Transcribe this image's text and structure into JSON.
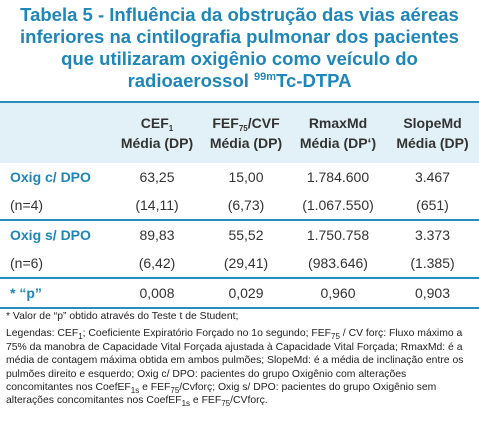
{
  "title": {
    "lines": [
      "Tabela 5 - Influência da obstrução das vias aéreas",
      "inferiores na cintilografia pulmonar dos pacientes",
      "que utilizaram oxigênio como veículo do"
    ],
    "last": [
      "radioaerossol ",
      {
        "sup": "99m"
      },
      "Tc-DTPA"
    ]
  },
  "table": {
    "columns": [
      {
        "name": "CEF",
        "sub": "1",
        "suffix": "",
        "stat": "Média (DP)"
      },
      {
        "name": "FEF",
        "sub": "75",
        "suffix": "/CVF",
        "stat": "Média (DP)"
      },
      {
        "name": "RmaxMd",
        "sub": "",
        "suffix": "",
        "stat": "Média (DP‘)"
      },
      {
        "name": "SlopeMd",
        "sub": "",
        "suffix": "",
        "stat": "Média (DP)"
      }
    ],
    "rows": [
      {
        "label": "Oxig c/ DPO",
        "values": [
          "63,25",
          "15,00",
          "1.784.600",
          "3.467"
        ]
      },
      {
        "label": "(n=4)",
        "values": [
          "(14,11)",
          "(6,73)",
          "(1.067.550)",
          "(651)"
        ]
      },
      {
        "label": "Oxig s/ DPO",
        "values": [
          "89,83",
          "55,52",
          "1.750.758",
          "3.373"
        ]
      },
      {
        "label": "(n=6)",
        "values": [
          "(6,42)",
          "(29,41)",
          "(983.646)",
          "(1.385)"
        ]
      },
      {
        "label": "* “p”",
        "values": [
          "0,008",
          "0,029",
          "0,960",
          "0,903"
        ]
      }
    ]
  },
  "footnote": {
    "note": "* Valor de “p” obtido através do Teste t de Student;",
    "legend": [
      "Legendas: CEF",
      {
        "sub": "1"
      },
      "; Coeficiente Expiratório Forçado no 1o segundo; FEF",
      {
        "sub": "75"
      },
      " / CV forç: Fluxo máximo a 75% da manobra de Capacidade Vital Forçada ajustada à Capacidade Vital Forçada; RmaxMd: é a média de contagem máxima obtida em ambos pulmões; SlopeMd: é a média de inclinação entre os pulmões direito e esquerdo; Oxig c/ DPO: pacientes do grupo Oxigênio com alterações concomitantes nos CoefEF",
      {
        "sub": "1s"
      },
      " e FEF",
      {
        "sub": "75"
      },
      "/Cvforç; Oxig s/ DPO: pacientes do grupo Oxigênio sem alterações concomitantes nos CoefEF",
      {
        "sub": "1s"
      },
      " e FEF",
      {
        "sub": "75"
      },
      "/CVforç."
    ]
  }
}
